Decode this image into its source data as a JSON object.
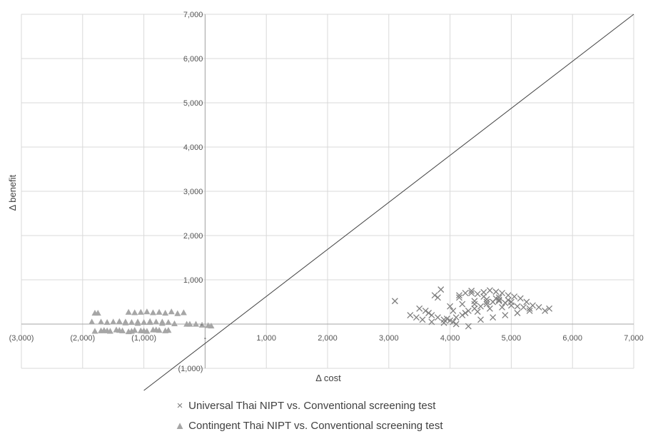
{
  "chart_data": {
    "type": "scatter",
    "title": "",
    "xlabel": "Δ cost",
    "ylabel": "Δ benefit",
    "xlim": [
      -3000,
      7000
    ],
    "ylim": [
      -1000,
      7000
    ],
    "x_ticks": [
      -3000,
      -2000,
      -1000,
      0,
      1000,
      2000,
      3000,
      4000,
      5000,
      6000,
      7000
    ],
    "x_tick_labels": [
      "(3,000)",
      "(2,000)",
      "(1,000)",
      "-",
      "1,000",
      "2,000",
      "3,000",
      "4,000",
      "5,000",
      "6,000",
      "7,000"
    ],
    "y_ticks": [
      -1000,
      0,
      1000,
      2000,
      3000,
      4000,
      5000,
      6000,
      7000
    ],
    "y_tick_labels": [
      "(1,000)",
      "-",
      "1,000",
      "2,000",
      "3,000",
      "4,000",
      "5,000",
      "6,000",
      "7,000"
    ],
    "grid": true,
    "legend_position": "bottom",
    "reference_line": {
      "x": [
        -1000,
        7000
      ],
      "y": [
        -1500,
        7000
      ]
    },
    "series": [
      {
        "name": "Universal Thai NIPT vs. Conventional screening test",
        "marker": "x",
        "color": "#7f7f7f",
        "x": [
          3100,
          3350,
          3450,
          3550,
          3650,
          3750,
          3850,
          3950,
          4050,
          4150,
          4250,
          4350,
          4450,
          4550,
          4650,
          4750,
          4850,
          4950,
          5050,
          5150,
          5250,
          5350,
          5450,
          5550,
          5620,
          3500,
          3600,
          3700,
          3800,
          3900,
          4000,
          4100,
          4200,
          4300,
          4400,
          4500,
          4600,
          4700,
          4800,
          4900,
          5000,
          5100,
          5200,
          5300,
          4050,
          4250,
          4450,
          4650,
          4850,
          4200,
          4400,
          4600,
          4800,
          3700,
          3900,
          4100,
          4300,
          4500,
          4700,
          4900,
          5100,
          5300,
          3800,
          4000,
          4400,
          4600,
          4800,
          5000,
          4150,
          4350,
          4550,
          4750,
          4950
        ],
        "y": [
          520,
          200,
          150,
          100,
          250,
          650,
          780,
          120,
          50,
          600,
          700,
          750,
          680,
          720,
          760,
          730,
          700,
          650,
          620,
          580,
          500,
          420,
          380,
          300,
          350,
          350,
          300,
          200,
          150,
          100,
          80,
          150,
          200,
          300,
          350,
          400,
          450,
          500,
          520,
          480,
          420,
          400,
          380,
          350,
          300,
          250,
          280,
          350,
          380,
          450,
          520,
          560,
          600,
          50,
          30,
          0,
          -50,
          100,
          150,
          200,
          250,
          300,
          600,
          400,
          450,
          500,
          550,
          500,
          650,
          700,
          620,
          580,
          540
        ]
      },
      {
        "name": "Contingent Thai NIPT vs. Conventional screening test",
        "marker": "triangle",
        "color": "#a6a6a6",
        "x": [
          -1800,
          -1750,
          -1850,
          -1700,
          -1600,
          -1500,
          -1400,
          -1300,
          -1200,
          -1100,
          -1000,
          -900,
          -800,
          -700,
          -600,
          -1250,
          -1150,
          -1050,
          -950,
          -850,
          -750,
          -650,
          -550,
          -450,
          -350,
          -250,
          -150,
          -50,
          50,
          100,
          -1700,
          -1650,
          -1550,
          -1450,
          -1350,
          -1250,
          -1150,
          -1050,
          -950,
          -850,
          -750,
          -650,
          -1800,
          -1600,
          -1400,
          -1200,
          -1000,
          -800,
          -600,
          -1300,
          -1100,
          -900,
          -700,
          -500,
          -300
        ],
        "y": [
          250,
          250,
          50,
          50,
          40,
          50,
          60,
          50,
          40,
          50,
          40,
          60,
          50,
          50,
          40,
          270,
          260,
          270,
          280,
          260,
          270,
          250,
          280,
          240,
          260,
          0,
          0,
          -20,
          -30,
          -40,
          -150,
          -140,
          -160,
          -130,
          -150,
          -170,
          -140,
          -150,
          -160,
          -130,
          -140,
          -150,
          -160,
          -150,
          -140,
          -160,
          -150,
          -130,
          -140,
          30,
          20,
          40,
          20,
          10,
          0
        ]
      }
    ]
  }
}
